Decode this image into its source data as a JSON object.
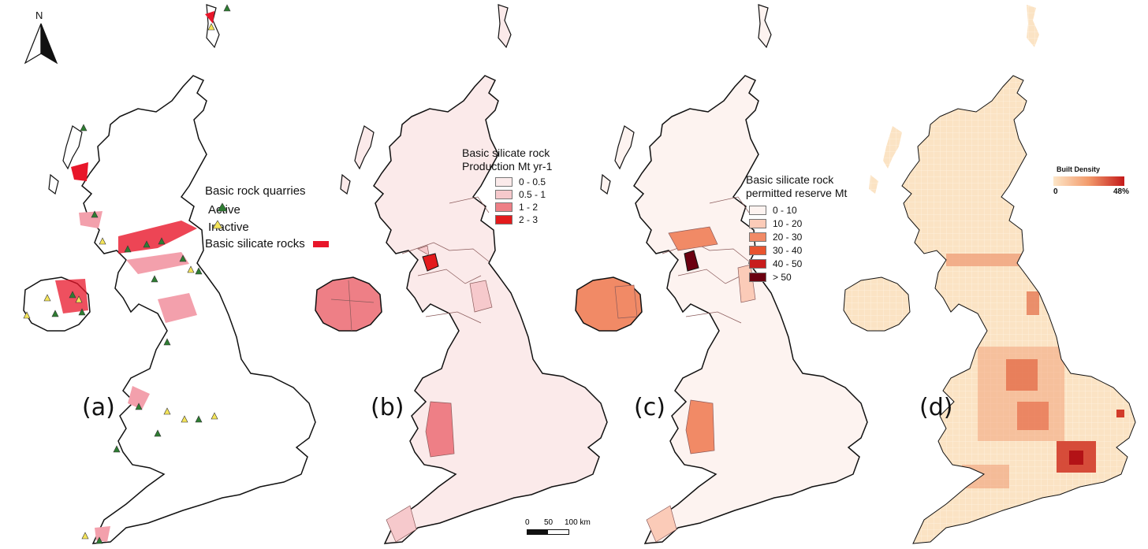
{
  "north_arrow": {
    "label": "N"
  },
  "panels": {
    "a": {
      "label": "(a)",
      "legend_title": "Basic rock quarries",
      "active_label": "Active",
      "inactive_label": "Inactive",
      "rocks_label": "Basic silicate rocks",
      "colors": {
        "active": "#2e7d32",
        "inactive": "#f4e45a",
        "rocks": "#e8162a",
        "rocks_light": "#f3a0ac"
      }
    },
    "b": {
      "label": "(b)",
      "legend_title_1": "Basic silicate rock",
      "legend_title_2": "Production Mt yr-1",
      "classes": [
        {
          "label": "0 - 0.5",
          "color": "#fbeaea"
        },
        {
          "label": "0.5 - 1",
          "color": "#f6c9cc"
        },
        {
          "label": "1 - 2",
          "color": "#ee7f86"
        },
        {
          "label": "2 - 3",
          "color": "#e31a1c"
        }
      ]
    },
    "c": {
      "label": "(c)",
      "legend_title_1": "Basic silicate rock",
      "legend_title_2": "permitted reserve Mt",
      "classes": [
        {
          "label": "0 - 10",
          "color": "#fdf3f0"
        },
        {
          "label": "10 - 20",
          "color": "#fbcbb8"
        },
        {
          "label": "20 - 30",
          "color": "#f18a66"
        },
        {
          "label": "30 - 40",
          "color": "#e8542f"
        },
        {
          "label": "40 - 50",
          "color": "#c81d1d"
        },
        {
          "label": "> 50",
          "color": "#6b0010"
        }
      ]
    },
    "d": {
      "label": "(d)",
      "legend_title": "Built Density",
      "min_label": "0",
      "max_label": "48%",
      "colors": {
        "low": "#fbe8c9",
        "mid": "#f29a6b",
        "high": "#c41a1a"
      }
    }
  },
  "scale_bar": {
    "labels": [
      "0",
      "50",
      "100 km"
    ]
  }
}
